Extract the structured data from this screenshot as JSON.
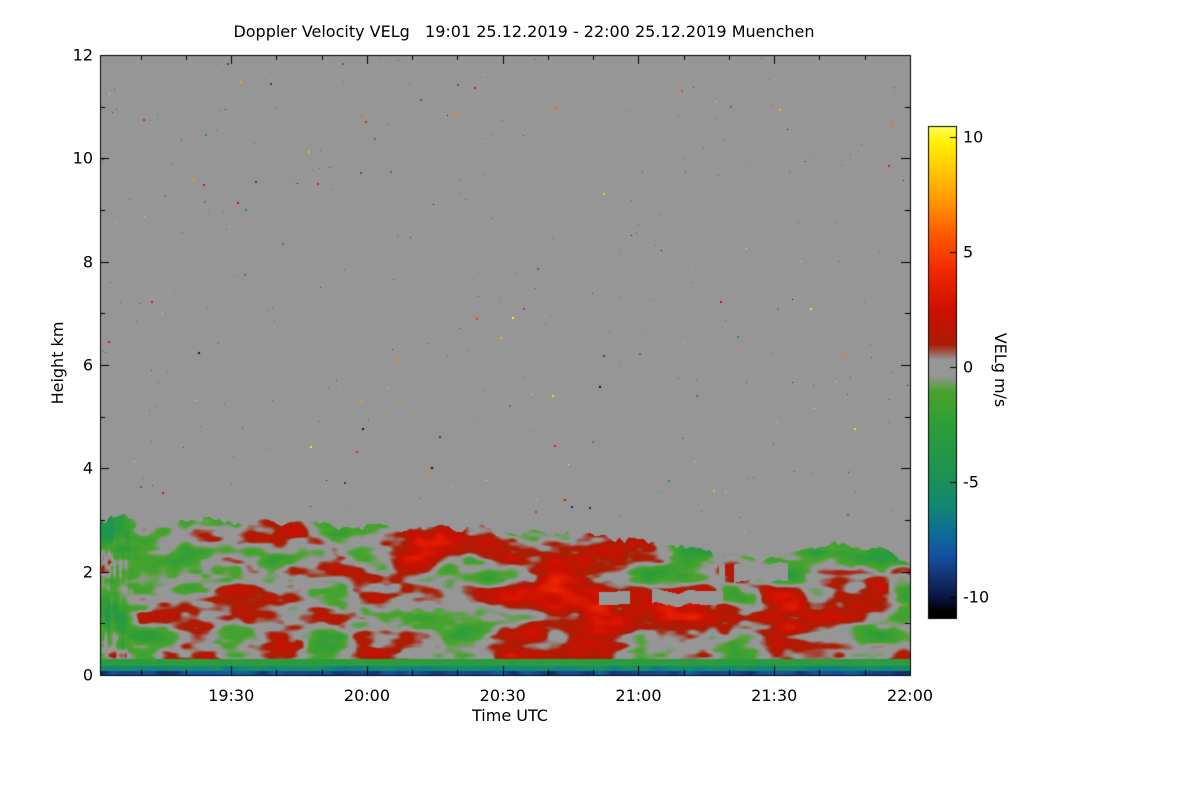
{
  "chart_data": {
    "type": "heatmap",
    "title": "Doppler Velocity VELg   19:01 25.12.2019 - 22:00 25.12.2019 Muenchen",
    "xlabel": "Time UTC",
    "ylabel": "Height km",
    "x_start": "19:01",
    "x_end": "22:00",
    "x_ticks": [
      "19:30",
      "20:00",
      "20:30",
      "21:00",
      "21:30",
      "22:00"
    ],
    "x_minor_step_minutes": 10,
    "ylim": [
      0,
      12
    ],
    "y_ticks": [
      0,
      2,
      4,
      6,
      8,
      10,
      12
    ],
    "y_minor_step": 1,
    "background_color": "#969696",
    "colorbar": {
      "label": "VELg m/s",
      "ticks": [
        10,
        5,
        0,
        -5,
        -10
      ],
      "vmax": 10.5,
      "vmin": -10.9,
      "stops": [
        [
          10.5,
          "#ffff55"
        ],
        [
          9.8,
          "#fff200"
        ],
        [
          8.6,
          "#ffc800"
        ],
        [
          7.2,
          "#ff9600"
        ],
        [
          5.8,
          "#ff5a00"
        ],
        [
          4.2,
          "#f02800"
        ],
        [
          2.4,
          "#cc0f00"
        ],
        [
          1.0,
          "#aa1e05"
        ],
        [
          0.35,
          "#969696"
        ],
        [
          -0.35,
          "#969696"
        ],
        [
          -1.0,
          "#4aa42e"
        ],
        [
          -2.5,
          "#2f9e38"
        ],
        [
          -4.5,
          "#1e9450"
        ],
        [
          -6.0,
          "#128874"
        ],
        [
          -7.2,
          "#0d6e96"
        ],
        [
          -8.2,
          "#1450a0"
        ],
        [
          -9.2,
          "#12306e"
        ],
        [
          -10.0,
          "#0a1440"
        ],
        [
          -10.6,
          "#000000"
        ]
      ]
    },
    "echo": {
      "top_profile": {
        "t": [
          0.0,
          0.03,
          0.06,
          0.1,
          0.14,
          0.18,
          0.22,
          0.26,
          0.3,
          0.34,
          0.38,
          0.42,
          0.46,
          0.5,
          0.54,
          0.58,
          0.61,
          0.64,
          0.67,
          0.7,
          0.73,
          0.76,
          0.79,
          0.82,
          0.85,
          0.88,
          0.91,
          0.94,
          0.97,
          1.0
        ],
        "km": [
          3.05,
          3.1,
          2.95,
          3.0,
          3.05,
          2.95,
          2.9,
          2.95,
          2.85,
          2.9,
          2.8,
          2.85,
          2.8,
          2.8,
          2.75,
          2.7,
          2.62,
          2.66,
          2.58,
          2.52,
          2.42,
          2.32,
          2.28,
          2.24,
          2.32,
          2.5,
          2.55,
          2.45,
          2.35,
          2.2
        ]
      },
      "gaps": [
        {
          "t": [
            0.605,
            0.77
          ],
          "km": [
            1.36,
            1.62
          ]
        },
        {
          "t": [
            0.765,
            0.85
          ],
          "km": [
            1.8,
            2.15
          ]
        }
      ],
      "ground_stripe_top_km": 0.16,
      "typical_velocity_down_ms": -2,
      "typical_velocity_up_ms": 2
    },
    "noise_speckles": {
      "count": 430,
      "seed": 7
    }
  }
}
